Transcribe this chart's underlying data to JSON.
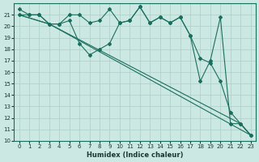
{
  "xlabel": "Humidex (Indice chaleur)",
  "ylabel": "",
  "xlim": [
    -0.5,
    23.5
  ],
  "ylim": [
    10,
    22
  ],
  "xticks": [
    0,
    1,
    2,
    3,
    4,
    5,
    6,
    7,
    8,
    9,
    10,
    11,
    12,
    13,
    14,
    15,
    16,
    17,
    18,
    19,
    20,
    21,
    22,
    23
  ],
  "yticks": [
    10,
    11,
    12,
    13,
    14,
    15,
    16,
    17,
    18,
    19,
    20,
    21
  ],
  "background_color": "#cce8e2",
  "grid_color": "#aacfc8",
  "line_color": "#1a6e5e",
  "series": [
    {
      "x": [
        0,
        1,
        2,
        3,
        4,
        5,
        6,
        7,
        8,
        9,
        10,
        11,
        12,
        13,
        14,
        15,
        16,
        17,
        18,
        19,
        20,
        21,
        22,
        23
      ],
      "y": [
        21.5,
        21.0,
        21.0,
        20.2,
        20.2,
        21.0,
        21.0,
        20.3,
        20.5,
        21.5,
        20.3,
        20.5,
        21.7,
        20.3,
        20.8,
        20.3,
        20.8,
        19.2,
        15.2,
        17.0,
        20.8,
        11.5,
        11.5,
        10.5
      ],
      "markers": true
    },
    {
      "x": [
        0,
        1,
        2,
        3,
        4,
        5,
        6,
        7,
        8,
        9,
        10,
        11,
        12,
        13,
        14,
        15,
        16,
        17,
        18,
        19,
        20,
        21,
        22,
        23
      ],
      "y": [
        21.0,
        21.0,
        21.0,
        20.2,
        20.2,
        20.5,
        18.5,
        17.5,
        18.0,
        18.5,
        20.3,
        20.5,
        21.7,
        20.3,
        20.8,
        20.3,
        20.8,
        19.2,
        17.2,
        16.8,
        15.2,
        12.5,
        11.5,
        10.5
      ],
      "markers": true
    },
    {
      "x": [
        0,
        3,
        23
      ],
      "y": [
        21.0,
        20.2,
        10.5
      ],
      "markers": false
    },
    {
      "x": [
        0,
        3,
        22,
        23
      ],
      "y": [
        21.0,
        20.2,
        11.5,
        10.5
      ],
      "markers": false
    }
  ]
}
